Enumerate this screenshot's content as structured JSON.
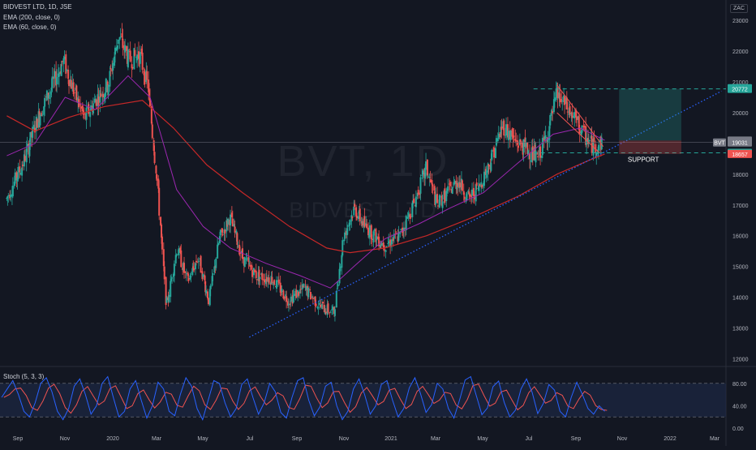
{
  "header": {
    "symbol_line": "BIDVEST LTD, 1D, JSE",
    "indicator_1": "EMA (200, close, 0)",
    "indicator_2": "EMA (60, close, 0)",
    "stoch_label": "Stoch (5, 3, 3)",
    "currency": "ZAC"
  },
  "watermark": {
    "ticker": "BVT, 1D",
    "name": "BIDVEST LTD"
  },
  "annotations": {
    "support": "SUPPORT",
    "ticker_tag": "BVT"
  },
  "colors": {
    "background": "#131722",
    "candle_up": "#26a69a",
    "candle_down": "#ef5350",
    "ema200": "#c62828",
    "ema60": "#9c27b0",
    "trendline": "#2962ff",
    "support_line": "#26a69a",
    "stoch_k": "#2962ff",
    "stoch_d": "#ef5350",
    "stoch_band": "#1e2a4a"
  },
  "chart_data": [
    {
      "type": "candlestick",
      "title": "BIDVEST LTD, 1D, JSE",
      "ylim": [
        11800,
        23400
      ],
      "y_ticks": [
        12000,
        13000,
        14000,
        15000,
        16000,
        17000,
        18000,
        19000,
        20000,
        21000,
        22000,
        23000
      ],
      "x_ticks": [
        "Sep",
        "Nov",
        "2020",
        "Mar",
        "May",
        "Jul",
        "Sep",
        "Nov",
        "2021",
        "Mar",
        "May",
        "Jul",
        "Sep",
        "Nov",
        "2022",
        "Mar"
      ],
      "grid": false,
      "price_path": [
        [
          "2019-08-25",
          17200
        ],
        [
          "2019-09-15",
          18300
        ],
        [
          "2019-10-05",
          19800
        ],
        [
          "2019-10-25",
          20900
        ],
        [
          "2019-11-08",
          21700
        ],
        [
          "2019-11-22",
          20700
        ],
        [
          "2019-12-06",
          19800
        ],
        [
          "2019-12-20",
          20400
        ],
        [
          "2020-01-06",
          20900
        ],
        [
          "2020-01-20",
          22500
        ],
        [
          "2020-02-03",
          21700
        ],
        [
          "2020-02-17",
          21900
        ],
        [
          "2020-02-28",
          20800
        ],
        [
          "2020-03-10",
          18000
        ],
        [
          "2020-03-23",
          13700
        ],
        [
          "2020-04-06",
          15600
        ],
        [
          "2020-04-20",
          14500
        ],
        [
          "2020-05-04",
          15300
        ],
        [
          "2020-05-18",
          13900
        ],
        [
          "2020-06-01",
          15900
        ],
        [
          "2020-06-15",
          16600
        ],
        [
          "2020-07-01",
          15300
        ],
        [
          "2020-07-20",
          14700
        ],
        [
          "2020-08-10",
          14600
        ],
        [
          "2020-08-31",
          13900
        ],
        [
          "2020-09-21",
          14300
        ],
        [
          "2020-10-12",
          13700
        ],
        [
          "2020-10-30",
          13500
        ],
        [
          "2020-11-12",
          16000
        ],
        [
          "2020-11-26",
          16900
        ],
        [
          "2020-12-10",
          16300
        ],
        [
          "2021-01-05",
          15700
        ],
        [
          "2021-01-25",
          16000
        ],
        [
          "2021-02-15",
          17200
        ],
        [
          "2021-03-01",
          18200
        ],
        [
          "2021-03-15",
          17000
        ],
        [
          "2021-03-29",
          17400
        ],
        [
          "2021-04-12",
          17800
        ],
        [
          "2021-04-26",
          17200
        ],
        [
          "2021-05-10",
          17600
        ],
        [
          "2021-05-24",
          18400
        ],
        [
          "2021-06-10",
          19600
        ],
        [
          "2021-06-25",
          19100
        ],
        [
          "2021-07-12",
          18800
        ],
        [
          "2021-07-26",
          18500
        ],
        [
          "2021-08-09",
          19400
        ],
        [
          "2021-08-20",
          20600
        ],
        [
          "2021-09-01",
          20200
        ],
        [
          "2021-09-15",
          19700
        ],
        [
          "2021-09-27",
          19200
        ],
        [
          "2021-10-08",
          18900
        ],
        [
          "2021-10-20",
          19031
        ]
      ],
      "ema200": [
        [
          "2019-08-25",
          19900
        ],
        [
          "2019-10-01",
          19400
        ],
        [
          "2019-11-15",
          19850
        ],
        [
          "2020-01-01",
          20200
        ],
        [
          "2020-02-20",
          20400
        ],
        [
          "2020-04-01",
          19500
        ],
        [
          "2020-05-15",
          18300
        ],
        [
          "2020-07-01",
          17400
        ],
        [
          "2020-09-01",
          16300
        ],
        [
          "2020-10-20",
          15600
        ],
        [
          "2020-11-20",
          15450
        ],
        [
          "2021-01-05",
          15600
        ],
        [
          "2021-03-01",
          16000
        ],
        [
          "2021-05-01",
          16600
        ],
        [
          "2021-07-01",
          17300
        ],
        [
          "2021-08-20",
          18000
        ],
        [
          "2021-10-01",
          18450
        ],
        [
          "2021-10-22",
          18657
        ]
      ],
      "ema60": [
        [
          "2019-08-25",
          18600
        ],
        [
          "2019-10-01",
          19000
        ],
        [
          "2019-11-10",
          20500
        ],
        [
          "2019-12-20",
          20100
        ],
        [
          "2020-02-01",
          21200
        ],
        [
          "2020-03-01",
          20500
        ],
        [
          "2020-04-05",
          17500
        ],
        [
          "2020-05-10",
          16300
        ],
        [
          "2020-06-15",
          15600
        ],
        [
          "2020-08-01",
          15100
        ],
        [
          "2020-09-15",
          14700
        ],
        [
          "2020-10-25",
          14300
        ],
        [
          "2020-11-25",
          15000
        ],
        [
          "2021-01-05",
          15900
        ],
        [
          "2021-02-20",
          16400
        ],
        [
          "2021-04-01",
          16900
        ],
        [
          "2021-05-15",
          17400
        ],
        [
          "2021-07-01",
          18400
        ],
        [
          "2021-08-15",
          19300
        ],
        [
          "2021-09-20",
          19500
        ],
        [
          "2021-10-22",
          19100
        ]
      ],
      "trendline": {
        "from": [
          "2020-07-10",
          12700
        ],
        "to": [
          "2022-03-25",
          20700
        ]
      },
      "support_level": 18695,
      "resistance_level": 20772,
      "descending_wedge": [
        [
          "2021-08-20",
          20900
        ],
        [
          "2021-10-20",
          18900
        ],
        [
          "2021-08-20",
          20000
        ],
        [
          "2021-10-15",
          18700
        ]
      ],
      "position_box": {
        "from": "2021-11-10",
        "to": "2022-01-31",
        "entry": 19094,
        "target": 20772,
        "stop": 18657
      },
      "price_labels": [
        {
          "value": 20797,
          "text": "20797",
          "color": "#26a69a"
        },
        {
          "value": 20772,
          "text": "20772",
          "color": "#26a69a"
        },
        {
          "value": 19094,
          "text": "19094",
          "color": "#787b86"
        },
        {
          "value": 19031,
          "text": "19031",
          "color": "#787b86"
        },
        {
          "value": 18695,
          "text": "18695",
          "color": "#26a69a"
        },
        {
          "value": 18657,
          "text": "18657",
          "color": "#ef5350"
        }
      ]
    },
    {
      "type": "line",
      "title": "Stoch (5, 3, 3)",
      "ylim": [
        0,
        100
      ],
      "y_ticks": [
        0,
        40,
        80
      ],
      "y_tick_labels": [
        "0.00",
        "40.00",
        "80.00"
      ],
      "band": [
        20,
        80
      ],
      "series": [
        {
          "name": "%K",
          "color": "#2962ff"
        },
        {
          "name": "%D",
          "color": "#ef5350"
        }
      ],
      "values_k": [
        55,
        70,
        85,
        60,
        30,
        20,
        45,
        80,
        90,
        65,
        30,
        15,
        35,
        75,
        88,
        60,
        25,
        40,
        80,
        92,
        55,
        20,
        30,
        70,
        85,
        50,
        18,
        40,
        82,
        70,
        30,
        22,
        60,
        90,
        75,
        35,
        15,
        50,
        85,
        80,
        45,
        20,
        35,
        78,
        88,
        55,
        25,
        45,
        80,
        65,
        28,
        18,
        55,
        85,
        90,
        50,
        22,
        38,
        75,
        82,
        40,
        15,
        30,
        70,
        88,
        60,
        25,
        40,
        78,
        85,
        50,
        20,
        35,
        72,
        90,
        62,
        28,
        42,
        80,
        70,
        35,
        18,
        50,
        86,
        92,
        58,
        24,
        36,
        74,
        84,
        46,
        20,
        32,
        70,
        88,
        64,
        26,
        44,
        78,
        68,
        30,
        20,
        55,
        82,
        60,
        35,
        25,
        40,
        30
      ]
    }
  ]
}
